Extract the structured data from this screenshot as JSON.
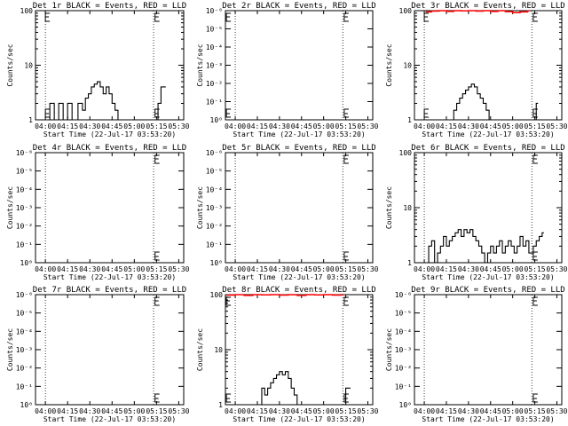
{
  "chart_data": [
    {
      "type": "line",
      "title": "Det 1r BLACK = Events, RED = LLD",
      "xlabel": "Start Time (22-Jul-17 03:53:20)",
      "ylabel": "Counts/sec",
      "xticks": [
        "04:00",
        "04:15",
        "04:30",
        "04:45",
        "05:00",
        "05:15",
        "05:30"
      ],
      "x_range": [
        "03:53:20",
        "05:33:20"
      ],
      "yscale": "log",
      "ylim": [
        1,
        100
      ],
      "yticks": [
        "1",
        "10",
        "100"
      ],
      "vlines": [
        "04:00",
        "05:13"
      ],
      "markers": [
        "04:00",
        "05:14"
      ],
      "series": [
        {
          "color": "#000000",
          "x": [
            "04:01",
            "04:03",
            "04:06",
            "04:09",
            "04:12",
            "04:15",
            "04:18",
            "04:22",
            "04:25",
            "04:27",
            "04:29",
            "04:31",
            "04:33",
            "04:35",
            "04:37",
            "04:39",
            "04:41",
            "04:43",
            "04:45",
            "04:47",
            "04:49",
            "05:14",
            "05:16",
            "05:18",
            "05:20"
          ],
          "y": [
            1,
            2,
            1,
            2,
            1,
            2,
            1,
            2,
            1.5,
            2.5,
            3,
            4,
            4.5,
            5,
            4,
            3,
            4,
            3,
            2,
            1.5,
            1,
            1,
            2,
            4,
            4
          ]
        },
        {
          "color": "#ff0000",
          "x": [],
          "y": []
        }
      ]
    },
    {
      "type": "line",
      "title": "Det 2r BLACK = Events, RED = LLD",
      "xlabel": "Start Time (22-Jul-17 03:53:20)",
      "ylabel": "Counts/sec",
      "xticks": [
        "04:00",
        "04:15",
        "04:30",
        "04:45",
        "05:00",
        "05:15",
        "05:30"
      ],
      "x_range": [
        "03:53:20",
        "05:33:20"
      ],
      "yscale": "log",
      "ylim": [
        1,
        1e-06
      ],
      "yticks": [
        "10⁰",
        "10⁻¹",
        "10⁻²",
        "10⁻³",
        "10⁻⁴",
        "10⁻⁵",
        "10⁻⁶"
      ],
      "vlines": [
        "04:00",
        "05:13"
      ],
      "markers": [
        "03:54",
        "05:14"
      ],
      "series": [
        {
          "color": "#000000",
          "x": [],
          "y": []
        },
        {
          "color": "#ff0000",
          "x": [],
          "y": []
        }
      ]
    },
    {
      "type": "line",
      "title": "Det 3r BLACK = Events, RED = LLD",
      "xlabel": "Start Time (22-Jul-17 03:53:20)",
      "ylabel": "Counts/sec",
      "xticks": [
        "04:00",
        "04:15",
        "04:30",
        "04:45",
        "05:00",
        "05:15",
        "05:30"
      ],
      "x_range": [
        "03:53:20",
        "05:33:20"
      ],
      "yscale": "log",
      "ylim": [
        1,
        100
      ],
      "yticks": [
        "1",
        "10",
        "100"
      ],
      "vlines": [
        "04:00",
        "05:13"
      ],
      "markers": [
        "04:00",
        "05:14"
      ],
      "series": [
        {
          "color": "#000000",
          "x": [
            "04:18",
            "04:20",
            "04:22",
            "04:24",
            "04:26",
            "04:28",
            "04:30",
            "04:32",
            "04:34",
            "04:36",
            "04:38",
            "04:40",
            "04:42",
            "04:44",
            "05:14",
            "05:16"
          ],
          "y": [
            1,
            1.5,
            2,
            2.5,
            3,
            3.5,
            4,
            4.5,
            4,
            3,
            2.5,
            2,
            1.5,
            1,
            1,
            2
          ]
        },
        {
          "color": "#ff0000",
          "x": [
            "04:01",
            "04:05",
            "04:10",
            "04:15",
            "04:20",
            "04:25",
            "04:30",
            "04:35",
            "04:40",
            "04:45",
            "04:50",
            "04:55",
            "05:00",
            "05:05",
            "05:10"
          ],
          "y": [
            95,
            98,
            100,
            97,
            100,
            99,
            100,
            98,
            100,
            97,
            100,
            96,
            92,
            95,
            98
          ]
        }
      ]
    },
    {
      "type": "line",
      "title": "Det 4r BLACK = Events, RED = LLD",
      "xlabel": "Start Time (22-Jul-17 03:53:20)",
      "ylabel": "Counts/sec",
      "xticks": [
        "04:00",
        "04:15",
        "04:30",
        "04:45",
        "05:00",
        "05:15",
        "05:30"
      ],
      "x_range": [
        "03:53:20",
        "05:33:20"
      ],
      "yscale": "log",
      "ylim": [
        1,
        1e-06
      ],
      "yticks": [
        "10⁰",
        "10⁻¹",
        "10⁻²",
        "10⁻³",
        "10⁻⁴",
        "10⁻⁵",
        "10⁻⁶"
      ],
      "vlines": [
        "04:00",
        "05:13"
      ],
      "markers": [
        "05:14"
      ],
      "series": [
        {
          "color": "#000000",
          "x": [],
          "y": []
        },
        {
          "color": "#ff0000",
          "x": [],
          "y": []
        }
      ]
    },
    {
      "type": "line",
      "title": "Det 5r BLACK = Events, RED = LLD",
      "xlabel": "Start Time (22-Jul-17 03:53:20)",
      "ylabel": "Counts/sec",
      "xticks": [
        "04:00",
        "04:15",
        "04:30",
        "04:45",
        "05:00",
        "05:15",
        "05:30"
      ],
      "x_range": [
        "03:53:20",
        "05:33:20"
      ],
      "yscale": "log",
      "ylim": [
        1,
        1e-06
      ],
      "yticks": [
        "10⁰",
        "10⁻¹",
        "10⁻²",
        "10⁻³",
        "10⁻⁴",
        "10⁻⁵",
        "10⁻⁶"
      ],
      "vlines": [
        "04:00",
        "05:13"
      ],
      "markers": [
        "05:14"
      ],
      "series": [
        {
          "color": "#000000",
          "x": [],
          "y": []
        },
        {
          "color": "#ff0000",
          "x": [],
          "y": []
        }
      ]
    },
    {
      "type": "line",
      "title": "Det 6r BLACK = Events, RED = LLD",
      "xlabel": "Start Time (22-Jul-17 03:53:20)",
      "ylabel": "Counts/sec",
      "xticks": [
        "04:00",
        "04:15",
        "04:30",
        "04:45",
        "05:00",
        "05:15",
        "05:30"
      ],
      "x_range": [
        "03:53:20",
        "05:33:20"
      ],
      "yscale": "log",
      "ylim": [
        1,
        100
      ],
      "yticks": [
        "1",
        "10",
        "100"
      ],
      "vlines": [
        "04:00",
        "05:13"
      ],
      "markers": [
        "05:14"
      ],
      "series": [
        {
          "color": "#000000",
          "x": [
            "04:01",
            "04:03",
            "04:05",
            "04:07",
            "04:09",
            "04:11",
            "04:13",
            "04:15",
            "04:17",
            "04:19",
            "04:21",
            "04:23",
            "04:25",
            "04:27",
            "04:29",
            "04:31",
            "04:33",
            "04:35",
            "04:37",
            "04:39",
            "04:41",
            "04:43",
            "04:45",
            "04:47",
            "04:49",
            "04:51",
            "04:53",
            "04:55",
            "04:57",
            "04:59",
            "05:01",
            "05:03",
            "05:05",
            "05:07",
            "05:09",
            "05:11",
            "05:14",
            "05:16",
            "05:18",
            "05:20"
          ],
          "y": [
            1,
            2,
            2.5,
            1,
            1.5,
            2,
            3,
            2,
            2.5,
            3,
            3.5,
            4,
            3,
            4,
            3.5,
            4,
            3,
            2.5,
            2,
            1.5,
            1,
            1.5,
            2,
            1.5,
            2,
            2.5,
            1.5,
            2,
            2.5,
            2,
            1.5,
            2,
            3,
            2,
            2.5,
            1.5,
            2,
            2.5,
            3,
            3.5
          ]
        },
        {
          "color": "#ff0000",
          "x": [],
          "y": []
        }
      ]
    },
    {
      "type": "line",
      "title": "Det 7r BLACK = Events, RED = LLD",
      "xlabel": "Start Time (22-Jul-17 03:53:20)",
      "ylabel": "Counts/sec",
      "xticks": [
        "04:00",
        "04:15",
        "04:30",
        "04:45",
        "05:00",
        "05:15",
        "05:30"
      ],
      "x_range": [
        "03:53:20",
        "05:33:20"
      ],
      "yscale": "log",
      "ylim": [
        1,
        1e-06
      ],
      "yticks": [
        "10⁰",
        "10⁻¹",
        "10⁻²",
        "10⁻³",
        "10⁻⁴",
        "10⁻⁵",
        "10⁻⁶"
      ],
      "vlines": [
        "04:00",
        "05:13"
      ],
      "markers": [
        "05:14"
      ],
      "series": [
        {
          "color": "#000000",
          "x": [],
          "y": []
        },
        {
          "color": "#ff0000",
          "x": [],
          "y": []
        }
      ]
    },
    {
      "type": "line",
      "title": "Det 8r BLACK = Events, RED = LLD",
      "xlabel": "Start Time (22-Jul-17 03:53:20)",
      "ylabel": "Counts/sec",
      "xticks": [
        "04:00",
        "04:15",
        "04:30",
        "04:45",
        "05:00",
        "05:15",
        "05:30"
      ],
      "x_range": [
        "03:53:20",
        "05:33:20"
      ],
      "yscale": "log",
      "ylim": [
        1,
        100
      ],
      "yticks": [
        "1",
        "10",
        "100"
      ],
      "vlines": [
        "04:00",
        "05:13"
      ],
      "markers": [
        "03:54",
        "05:14"
      ],
      "series": [
        {
          "color": "#000000",
          "x": [
            "04:16",
            "04:18",
            "04:20",
            "04:22",
            "04:24",
            "04:26",
            "04:28",
            "04:30",
            "04:32",
            "04:34",
            "04:36",
            "04:38",
            "04:40",
            "04:42",
            "05:13",
            "05:15",
            "05:17"
          ],
          "y": [
            1,
            2,
            1.5,
            2,
            2.5,
            3,
            3.5,
            4,
            3.5,
            4,
            3,
            2,
            1.5,
            1,
            1,
            2,
            2
          ]
        },
        {
          "color": "#ff0000",
          "x": [
            "03:54",
            "04:00",
            "04:06",
            "04:12",
            "04:18",
            "04:24",
            "04:30",
            "04:36",
            "04:42",
            "04:48",
            "04:54",
            "05:00",
            "05:06",
            "05:12"
          ],
          "y": [
            98,
            100,
            97,
            100,
            99,
            100,
            98,
            100,
            97,
            100,
            99,
            100,
            98,
            100
          ]
        }
      ]
    },
    {
      "type": "line",
      "title": "Det 9r BLACK = Events, RED = LLD",
      "xlabel": "Start Time (22-Jul-17 03:53:20)",
      "ylabel": "Counts/sec",
      "xticks": [
        "04:00",
        "04:15",
        "04:30",
        "04:45",
        "05:00",
        "05:15",
        "05:30"
      ],
      "x_range": [
        "03:53:20",
        "05:33:20"
      ],
      "yscale": "log",
      "ylim": [
        1,
        1e-06
      ],
      "yticks": [
        "10⁰",
        "10⁻¹",
        "10⁻²",
        "10⁻³",
        "10⁻⁴",
        "10⁻⁵",
        "10⁻⁶"
      ],
      "vlines": [
        "04:00",
        "05:13"
      ],
      "markers": [
        "05:14"
      ],
      "series": [
        {
          "color": "#000000",
          "x": [],
          "y": []
        },
        {
          "color": "#ff0000",
          "x": [],
          "y": []
        }
      ]
    }
  ]
}
